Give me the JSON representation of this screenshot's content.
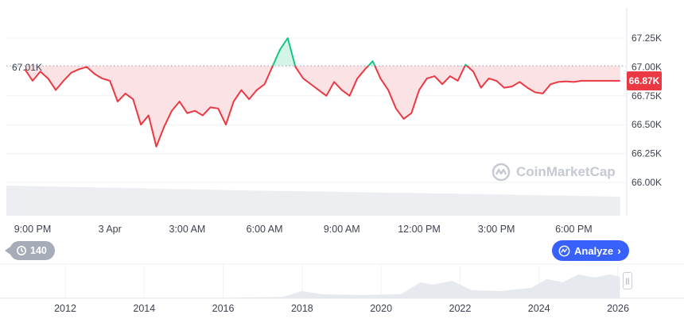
{
  "chart_data": {
    "type": "area",
    "reference_line_value": 67010,
    "reference_label": "67.01K",
    "current_price_label": "66.87K",
    "y_ticks": [
      "67.25K",
      "67.00K",
      "66.75K",
      "66.50K",
      "66.25K",
      "66.00K"
    ],
    "y_tick_values": [
      67250,
      67000,
      66750,
      66500,
      66250,
      66000
    ],
    "ylim": [
      65850,
      67400
    ],
    "x_ticks": [
      "9:00 PM",
      "3 Apr",
      "3:00 AM",
      "6:00 AM",
      "9:00 AM",
      "12:00 PM",
      "3:00 PM",
      "6:00 PM"
    ],
    "x_tick_hours": [
      0,
      3,
      6,
      9,
      12,
      15,
      18,
      21
    ],
    "x_hours": [
      -0.3,
      0.0,
      0.3,
      0.6,
      0.9,
      1.2,
      1.5,
      1.8,
      2.1,
      2.4,
      2.7,
      3.0,
      3.3,
      3.6,
      3.9,
      4.2,
      4.5,
      4.8,
      5.1,
      5.4,
      5.7,
      6.0,
      6.3,
      6.6,
      6.9,
      7.2,
      7.5,
      7.8,
      8.1,
      8.4,
      8.7,
      9.0,
      9.3,
      9.6,
      9.9,
      10.2,
      10.5,
      10.8,
      11.1,
      11.4,
      11.7,
      12.0,
      12.3,
      12.6,
      12.9,
      13.2,
      13.5,
      13.8,
      14.1,
      14.4,
      14.7,
      15.0,
      15.3,
      15.6,
      15.9,
      16.2,
      16.5,
      16.8,
      17.1,
      17.4,
      17.7,
      18.0,
      18.3,
      18.6,
      18.9,
      19.2,
      19.5,
      19.8,
      20.1,
      20.4,
      20.7,
      21.0,
      21.3,
      21.6,
      21.9,
      22.2,
      22.5,
      22.8
    ],
    "prices": [
      66980,
      66880,
      66960,
      66900,
      66800,
      66880,
      66950,
      66980,
      67000,
      66940,
      66900,
      66880,
      66700,
      66770,
      66720,
      66500,
      66580,
      66310,
      66480,
      66620,
      66700,
      66600,
      66620,
      66580,
      66650,
      66640,
      66500,
      66700,
      66800,
      66720,
      66800,
      66850,
      67000,
      67150,
      67250,
      67000,
      66900,
      66850,
      66800,
      66750,
      66870,
      66800,
      66750,
      66900,
      66980,
      67050,
      66900,
      66800,
      66640,
      66550,
      66600,
      66800,
      66900,
      66920,
      66850,
      66920,
      66880,
      67020,
      66960,
      66820,
      66900,
      66880,
      66820,
      66830,
      66870,
      66820,
      66780,
      66770,
      66850,
      66870,
      66875,
      66870,
      66880,
      66880,
      66880,
      66880,
      66880,
      66880
    ],
    "volume_note": "",
    "nav_x_ticks": [
      "2012",
      "2014",
      "2016",
      "2018",
      "2020",
      "2022",
      "2024",
      "2026"
    ]
  },
  "ui": {
    "history_label": "140",
    "analyze_label": "Analyze",
    "watermark_text": "CoinMarketCap"
  },
  "colors": {
    "up": "#16c784",
    "down": "#ea3943",
    "fill_down": "#fbe3e5",
    "fill_up": "#d3f4e6",
    "grid": "#eff2f5",
    "nav_area": "#e6e9ee"
  }
}
